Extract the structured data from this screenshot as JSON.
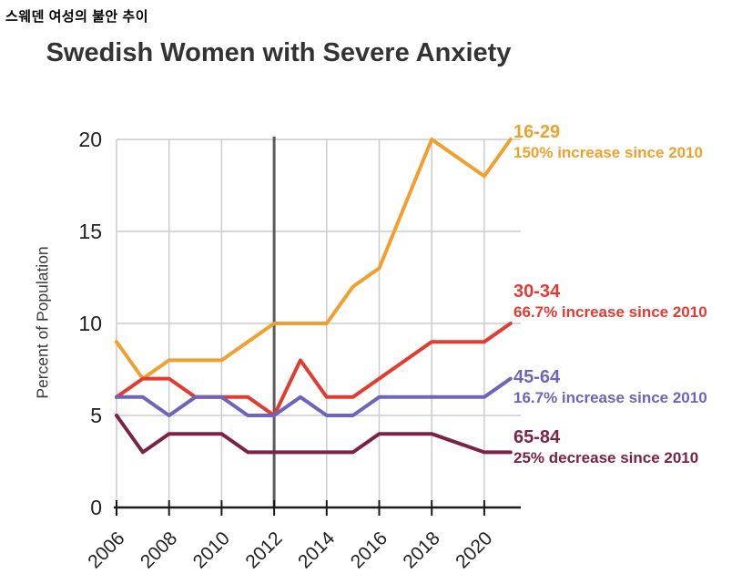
{
  "header": {
    "title_korean": "스웨덴 여성의 불안 추이"
  },
  "chart_data": {
    "type": "line",
    "title": "Swedish Women with Severe Anxiety",
    "xlabel": "",
    "ylabel": "Percent of Population",
    "x": [
      2006,
      2007,
      2008,
      2009,
      2010,
      2011,
      2012,
      2013,
      2014,
      2015,
      2016,
      2017,
      2018,
      2019,
      2020,
      2021
    ],
    "x_tick_labels": [
      "2006",
      "2008",
      "2010",
      "2012",
      "2014",
      "2016",
      "2018",
      "2020"
    ],
    "y_ticks": [
      0,
      5,
      10,
      15,
      20
    ],
    "ylim": [
      0,
      20
    ],
    "grid": true,
    "grid_color": "#cccccc",
    "axis_color": "#1a1a1a",
    "reference_line": {
      "x": 2012,
      "color": "#5b5b5b"
    },
    "legend_position": "right",
    "series": [
      {
        "name": "16-29",
        "note": "150% increase since 2010",
        "color": "#F0A02F",
        "values": [
          9,
          7,
          8,
          8,
          8,
          9,
          10,
          10,
          10,
          12,
          13,
          16.5,
          20,
          19,
          18,
          20
        ]
      },
      {
        "name": "30-34",
        "note": "66.7% increase since 2010",
        "color": "#E23C32",
        "values": [
          6,
          7,
          7,
          6,
          6,
          6,
          5,
          8,
          6,
          6,
          7,
          8,
          9,
          9,
          9,
          10
        ]
      },
      {
        "name": "45-64",
        "note": "16.7% increase since 2010",
        "color": "#6E64BA",
        "values": [
          6,
          6,
          5,
          6,
          6,
          5,
          5,
          6,
          5,
          5,
          6,
          6,
          6,
          6,
          6,
          7
        ]
      },
      {
        "name": "65-84",
        "note": "25% decrease since 2010",
        "color": "#7B2346",
        "values": [
          5,
          3,
          4,
          4,
          4,
          3,
          3,
          3,
          3,
          3,
          4,
          4,
          4,
          3.5,
          3,
          3
        ]
      }
    ]
  }
}
